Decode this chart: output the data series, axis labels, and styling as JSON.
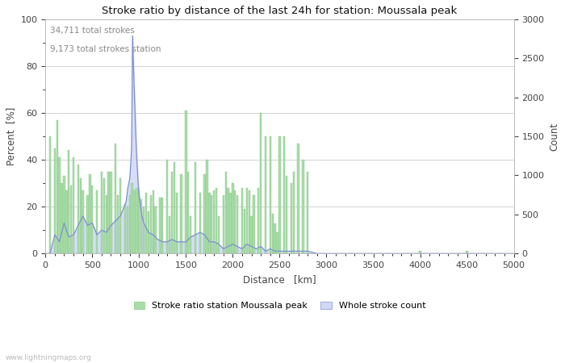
{
  "title": "Stroke ratio by distance of the last 24h for station: Moussala peak",
  "xlabel": "Distance   [km]",
  "ylabel_left": "Percent  [%]",
  "ylabel_right": "Count",
  "annotation_line1": "34,711 total strokes",
  "annotation_line2": "9,173 total strokes station",
  "watermark": "www.lightningmaps.org",
  "legend_green": "Stroke ratio station Moussala peak",
  "legend_blue": "Whole stroke count",
  "xlim": [
    0,
    5000
  ],
  "ylim_left": [
    0,
    100
  ],
  "ylim_right": [
    0,
    3000
  ],
  "bar_color": "#a8dca8",
  "bar_edge_color": "#88c888",
  "fill_color": "#d0d8f8",
  "line_color": "#8090d0",
  "background_color": "#ffffff",
  "grid_color": "#cccccc",
  "tick_label_color": "#444444",
  "title_color": "#111111",
  "annotation_color": "#888888",
  "watermark_color": "#bbbbbb",
  "green_bars": [
    [
      50,
      50
    ],
    [
      75,
      0
    ],
    [
      100,
      45
    ],
    [
      125,
      57
    ],
    [
      150,
      41
    ],
    [
      175,
      30
    ],
    [
      200,
      33
    ],
    [
      225,
      27
    ],
    [
      250,
      44
    ],
    [
      275,
      29
    ],
    [
      300,
      41
    ],
    [
      325,
      0
    ],
    [
      350,
      38
    ],
    [
      375,
      32
    ],
    [
      400,
      27
    ],
    [
      425,
      0
    ],
    [
      450,
      25
    ],
    [
      475,
      34
    ],
    [
      500,
      29
    ],
    [
      525,
      0
    ],
    [
      550,
      27
    ],
    [
      575,
      0
    ],
    [
      600,
      35
    ],
    [
      625,
      32
    ],
    [
      650,
      25
    ],
    [
      675,
      35
    ],
    [
      700,
      35
    ],
    [
      725,
      0
    ],
    [
      750,
      47
    ],
    [
      775,
      25
    ],
    [
      800,
      32
    ],
    [
      825,
      0
    ],
    [
      850,
      21
    ],
    [
      875,
      20
    ],
    [
      900,
      25
    ],
    [
      925,
      30
    ],
    [
      950,
      27
    ],
    [
      975,
      28
    ],
    [
      1000,
      27
    ],
    [
      1025,
      23
    ],
    [
      1050,
      20
    ],
    [
      1075,
      26
    ],
    [
      1100,
      18
    ],
    [
      1125,
      25
    ],
    [
      1150,
      27
    ],
    [
      1175,
      20
    ],
    [
      1200,
      0
    ],
    [
      1225,
      24
    ],
    [
      1250,
      24
    ],
    [
      1275,
      0
    ],
    [
      1300,
      40
    ],
    [
      1325,
      16
    ],
    [
      1350,
      35
    ],
    [
      1375,
      39
    ],
    [
      1400,
      26
    ],
    [
      1425,
      0
    ],
    [
      1450,
      34
    ],
    [
      1475,
      0
    ],
    [
      1500,
      61
    ],
    [
      1525,
      35
    ],
    [
      1550,
      16
    ],
    [
      1575,
      0
    ],
    [
      1600,
      39
    ],
    [
      1625,
      0
    ],
    [
      1650,
      26
    ],
    [
      1675,
      0
    ],
    [
      1700,
      34
    ],
    [
      1725,
      40
    ],
    [
      1750,
      26
    ],
    [
      1775,
      25
    ],
    [
      1800,
      27
    ],
    [
      1825,
      28
    ],
    [
      1850,
      16
    ],
    [
      1875,
      0
    ],
    [
      1900,
      25
    ],
    [
      1925,
      35
    ],
    [
      1950,
      28
    ],
    [
      1975,
      26
    ],
    [
      2000,
      30
    ],
    [
      2025,
      27
    ],
    [
      2050,
      25
    ],
    [
      2075,
      0
    ],
    [
      2100,
      28
    ],
    [
      2125,
      19
    ],
    [
      2150,
      28
    ],
    [
      2175,
      27
    ],
    [
      2200,
      16
    ],
    [
      2225,
      25
    ],
    [
      2250,
      0
    ],
    [
      2275,
      28
    ],
    [
      2300,
      60
    ],
    [
      2325,
      0
    ],
    [
      2350,
      50
    ],
    [
      2375,
      0
    ],
    [
      2400,
      50
    ],
    [
      2425,
      17
    ],
    [
      2450,
      13
    ],
    [
      2475,
      9
    ],
    [
      2500,
      50
    ],
    [
      2525,
      0
    ],
    [
      2550,
      50
    ],
    [
      2575,
      33
    ],
    [
      2600,
      0
    ],
    [
      2625,
      30
    ],
    [
      2650,
      35
    ],
    [
      2675,
      0
    ],
    [
      2700,
      47
    ],
    [
      2725,
      0
    ],
    [
      2750,
      40
    ],
    [
      2775,
      0
    ],
    [
      2800,
      35
    ],
    [
      2825,
      0
    ],
    [
      2850,
      0
    ],
    [
      2875,
      0
    ],
    [
      2900,
      0
    ],
    [
      2950,
      0
    ],
    [
      3000,
      0
    ],
    [
      3050,
      0
    ],
    [
      3100,
      0
    ],
    [
      3150,
      0
    ],
    [
      3200,
      0
    ],
    [
      3250,
      0
    ],
    [
      3300,
      0
    ],
    [
      3350,
      0
    ],
    [
      3400,
      0
    ],
    [
      3450,
      0
    ],
    [
      3500,
      0
    ],
    [
      4000,
      1
    ],
    [
      4500,
      1
    ],
    [
      5000,
      0
    ]
  ],
  "blue_x": [
    0,
    50,
    100,
    150,
    200,
    250,
    300,
    350,
    400,
    450,
    500,
    550,
    600,
    650,
    700,
    750,
    800,
    820,
    840,
    860,
    880,
    900,
    910,
    920,
    930,
    940,
    950,
    960,
    970,
    980,
    990,
    1000,
    1010,
    1020,
    1030,
    1050,
    1075,
    1100,
    1150,
    1200,
    1250,
    1300,
    1350,
    1400,
    1450,
    1500,
    1550,
    1600,
    1650,
    1700,
    1750,
    1800,
    1850,
    1900,
    1950,
    2000,
    2050,
    2100,
    2150,
    2200,
    2250,
    2300,
    2350,
    2400,
    2450,
    2500,
    2600,
    2700,
    2800,
    2900,
    3000,
    3200,
    3500,
    4000,
    5000
  ],
  "blue_y": [
    0,
    0,
    8,
    5,
    13,
    7,
    8,
    12,
    16,
    12,
    13,
    8,
    10,
    9,
    12,
    14,
    16,
    18,
    20,
    22,
    28,
    32,
    38,
    45,
    93,
    80,
    68,
    57,
    45,
    37,
    30,
    25,
    22,
    19,
    16,
    13,
    11,
    9,
    8,
    6,
    5,
    5,
    6,
    5,
    5,
    5,
    7,
    8,
    9,
    8,
    5,
    5,
    4,
    2,
    3,
    4,
    3,
    2,
    4,
    3,
    2,
    3,
    1,
    2,
    1,
    1,
    1,
    1,
    1,
    0,
    0,
    0,
    0,
    0,
    0
  ]
}
